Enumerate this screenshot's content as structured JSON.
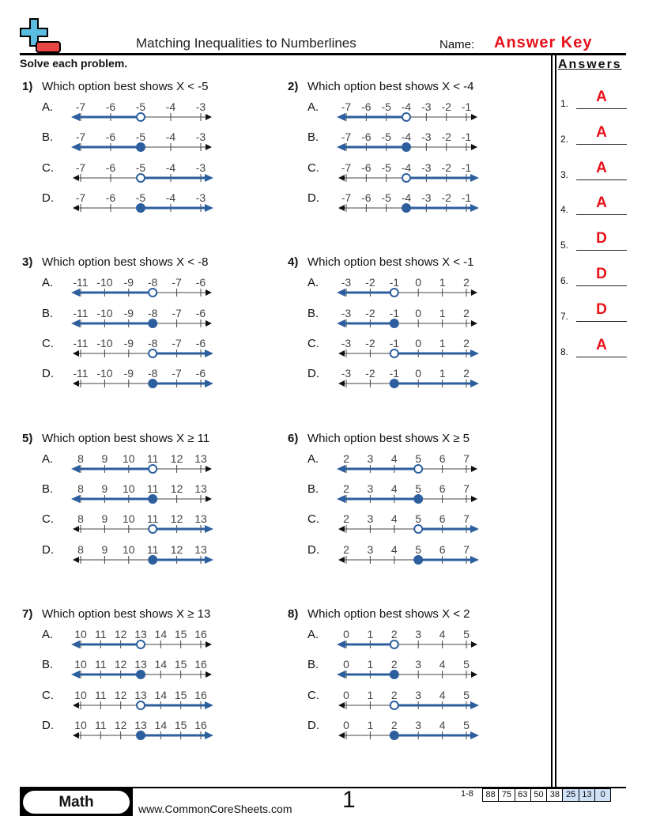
{
  "header": {
    "title": "Matching Inequalities to Numberlines",
    "name_label": "Name:",
    "name_value": "Answer Key",
    "instructions": "Solve each problem."
  },
  "colors": {
    "line": "#2d5f9e",
    "answer": "#e8101a",
    "logo_blue": "#5bbde0",
    "logo_red": "#e84545"
  },
  "answers": {
    "heading": "Answers",
    "items": [
      {
        "num": "1.",
        "value": "A"
      },
      {
        "num": "2.",
        "value": "A"
      },
      {
        "num": "3.",
        "value": "A"
      },
      {
        "num": "4.",
        "value": "A"
      },
      {
        "num": "5.",
        "value": "D"
      },
      {
        "num": "6.",
        "value": "D"
      },
      {
        "num": "7.",
        "value": "D"
      },
      {
        "num": "8.",
        "value": "A"
      }
    ]
  },
  "option_graphs": [
    {
      "label": "A.",
      "closed": false,
      "direction": "left"
    },
    {
      "label": "B.",
      "closed": true,
      "direction": "left"
    },
    {
      "label": "C.",
      "closed": false,
      "direction": "right"
    },
    {
      "label": "D.",
      "closed": true,
      "direction": "right"
    }
  ],
  "problems": [
    {
      "num": "1)",
      "question": "Which option best shows X < -5",
      "ticks": [
        -7,
        -6,
        -5,
        -4,
        -3
      ],
      "point": -5
    },
    {
      "num": "2)",
      "question": "Which option best shows X < -4",
      "ticks": [
        -7,
        -6,
        -5,
        -4,
        -3,
        -2,
        -1
      ],
      "point": -4
    },
    {
      "num": "3)",
      "question": "Which option best shows X < -8",
      "ticks": [
        -11,
        -10,
        -9,
        -8,
        -7,
        -6
      ],
      "point": -8
    },
    {
      "num": "4)",
      "question": "Which option best shows X < -1",
      "ticks": [
        -3,
        -2,
        -1,
        0,
        1,
        2
      ],
      "point": -1
    },
    {
      "num": "5)",
      "question": "Which option best shows X ≥ 11",
      "ticks": [
        8,
        9,
        10,
        11,
        12,
        13
      ],
      "point": 11
    },
    {
      "num": "6)",
      "question": "Which option best shows X ≥ 5",
      "ticks": [
        2,
        3,
        4,
        5,
        6,
        7
      ],
      "point": 5
    },
    {
      "num": "7)",
      "question": "Which option best shows X ≥ 13",
      "ticks": [
        10,
        11,
        12,
        13,
        14,
        15,
        16
      ],
      "point": 13
    },
    {
      "num": "8)",
      "question": "Which option best shows X < 2",
      "ticks": [
        0,
        1,
        2,
        3,
        4,
        5
      ],
      "point": 2
    }
  ],
  "footer": {
    "subject": "Math",
    "url": "www.CommonCoreSheets.com",
    "page": "1",
    "score_label": "1-8",
    "scores": [
      "88",
      "75",
      "63",
      "50",
      "38",
      "25",
      "13",
      "0"
    ],
    "highlighted_scores": [
      "25",
      "13",
      "0"
    ]
  }
}
